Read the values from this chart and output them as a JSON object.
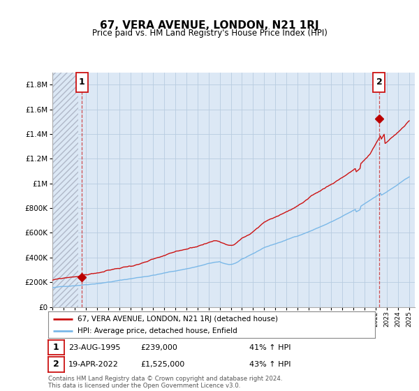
{
  "title": "67, VERA AVENUE, LONDON, N21 1RJ",
  "subtitle": "Price paid vs. HM Land Registry's House Price Index (HPI)",
  "sale1_date": "23-AUG-1995",
  "sale1_price": 239000,
  "sale1_label": "41% ↑ HPI",
  "sale2_date": "19-APR-2022",
  "sale2_price": 1525000,
  "sale2_label": "43% ↑ HPI",
  "hpi_line_color": "#7ab8e8",
  "price_line_color": "#cc1111",
  "marker_color": "#bb0000",
  "annotation_box_color": "#cc1111",
  "footnote": "Contains HM Land Registry data © Crown copyright and database right 2024.\nThis data is licensed under the Open Government Licence v3.0.",
  "legend_label1": "67, VERA AVENUE, LONDON, N21 1RJ (detached house)",
  "legend_label2": "HPI: Average price, detached house, Enfield",
  "ylim_max": 1900000,
  "sale1_x": 1995.65,
  "sale2_x": 2022.3,
  "xmin": 1993.0,
  "xmax": 2025.5
}
